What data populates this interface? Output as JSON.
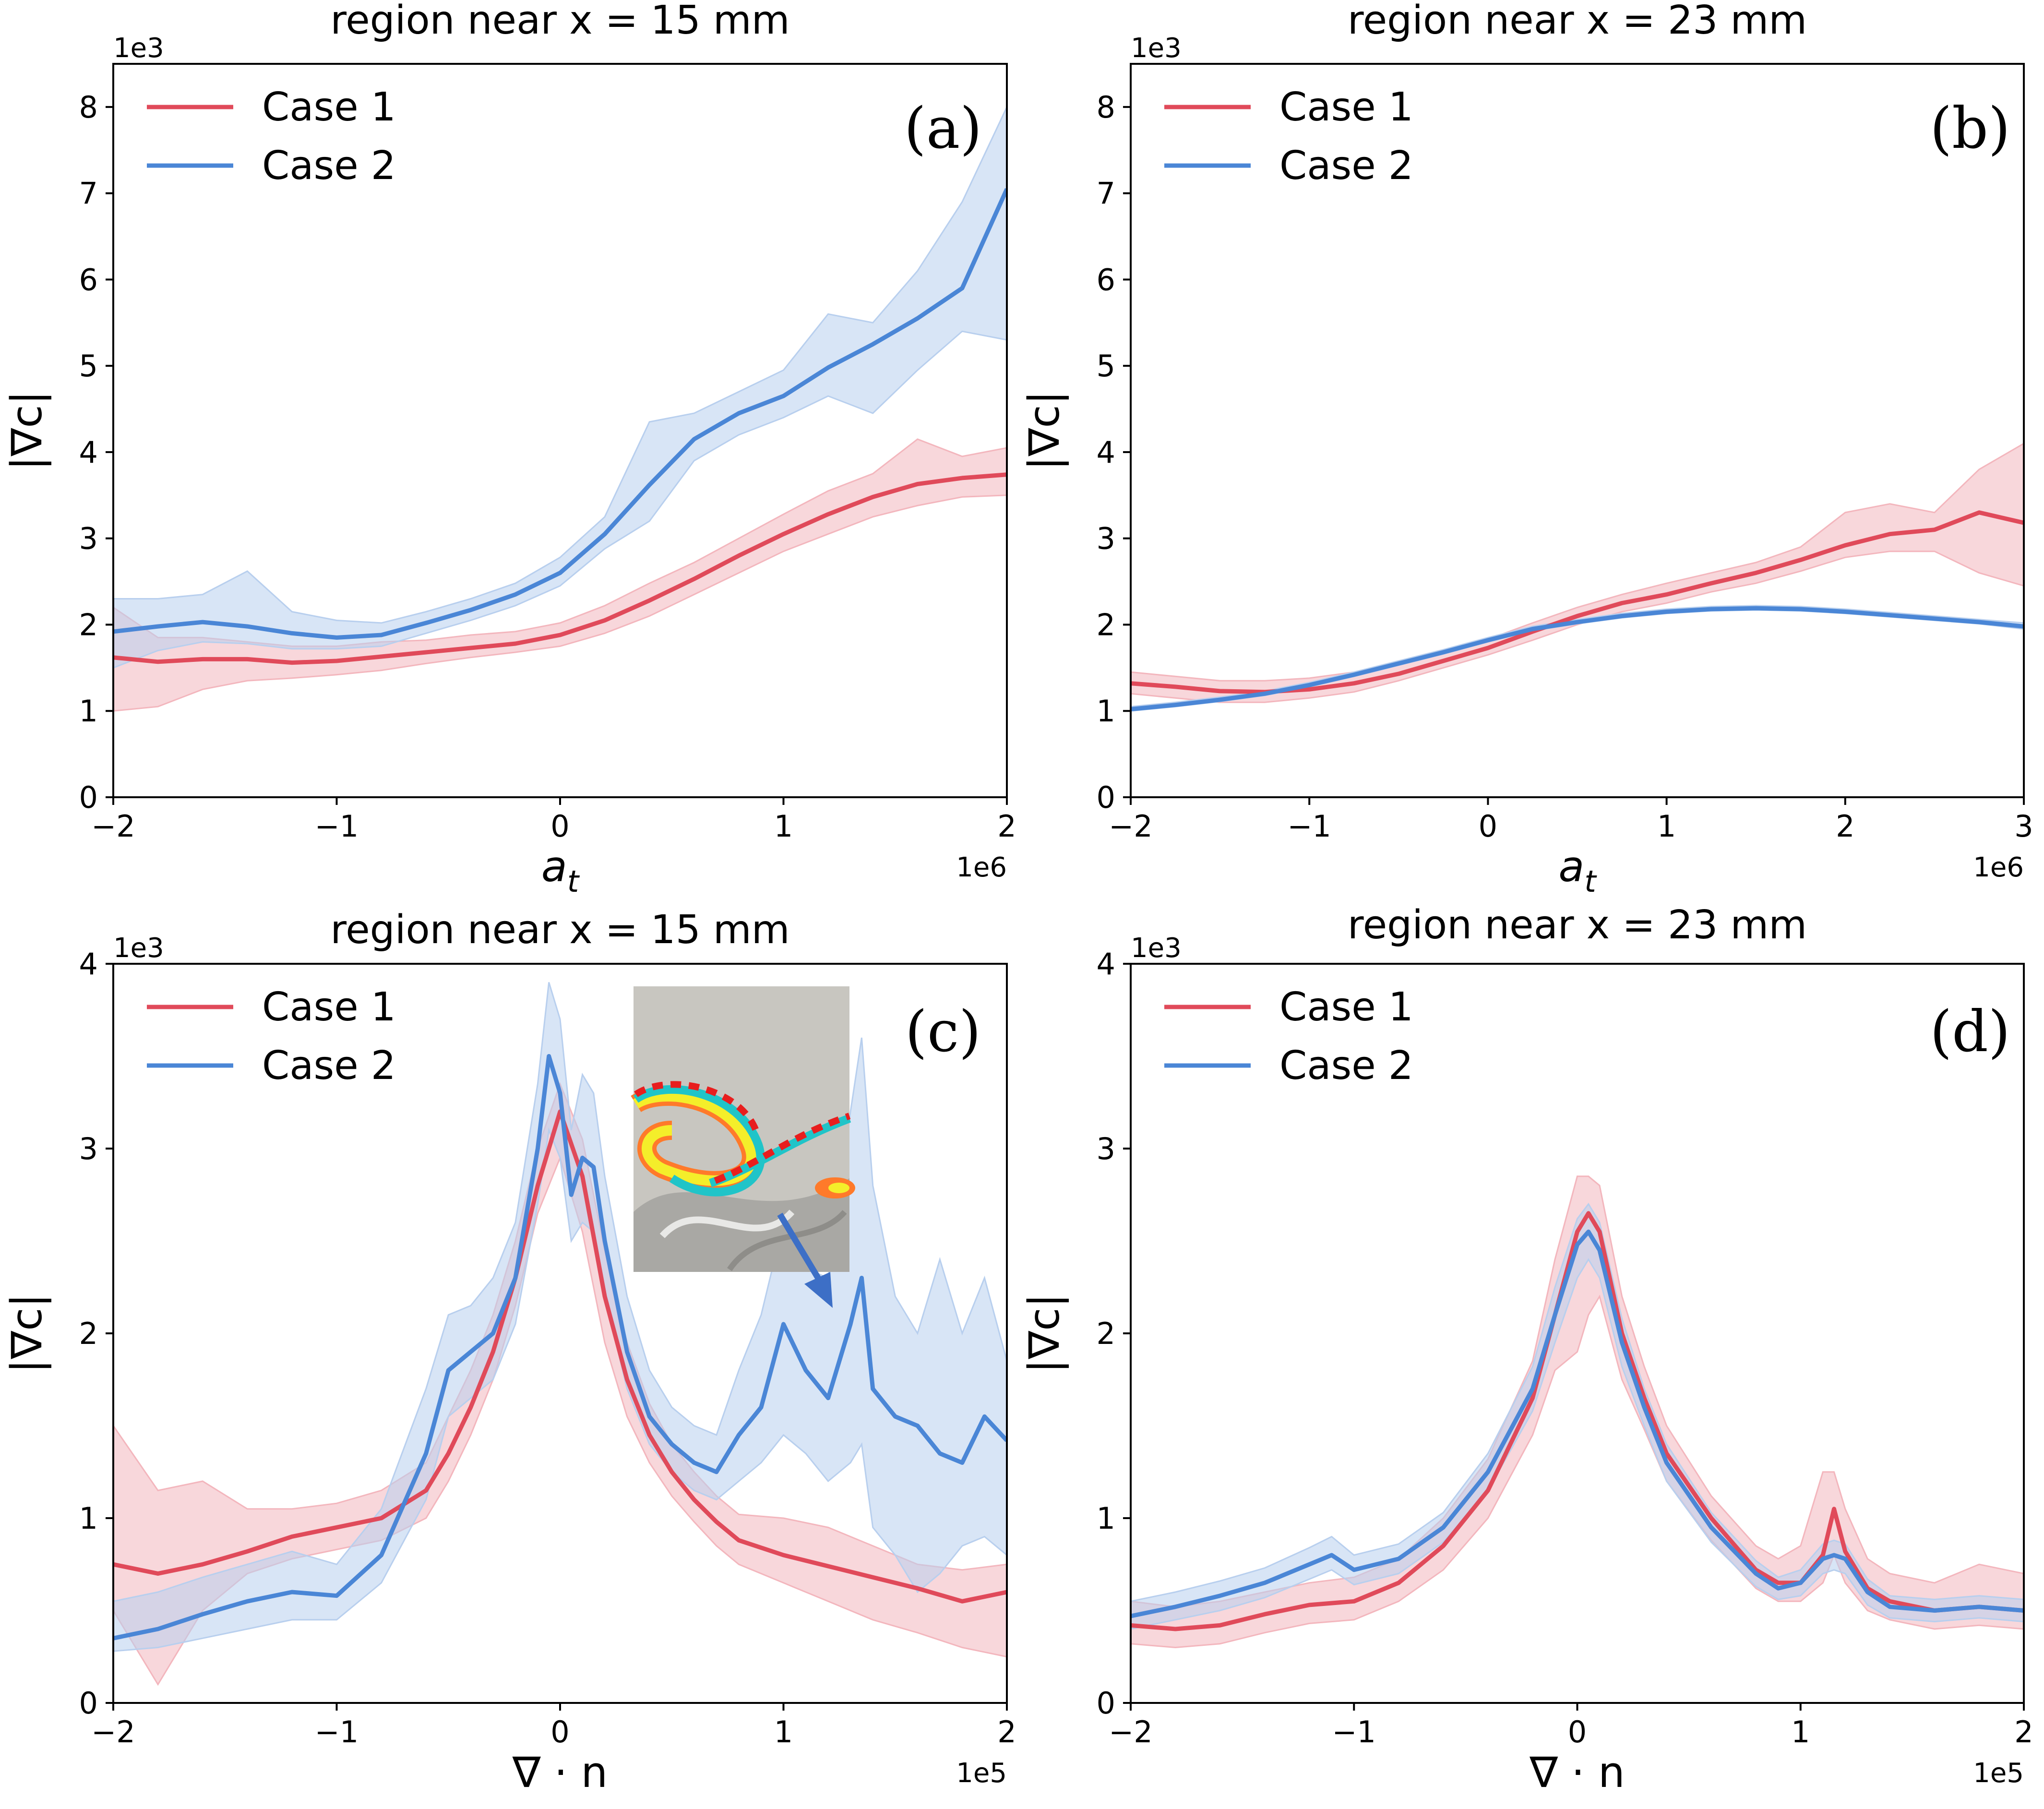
{
  "figure": {
    "colors": {
      "case1": "#e04a5a",
      "case2": "#4a86d6",
      "case1_band": "#f3b6bd",
      "case2_band": "#b8cfee"
    }
  },
  "chart_data": [
    {
      "id": "a",
      "type": "line",
      "tag": "(a)",
      "title": "region near x = 15 mm",
      "xlabel": "a_t",
      "ylabel": "|∇c|",
      "x_multiplier": "1e6",
      "y_multiplier": "1e3",
      "xlim": [
        -2,
        2
      ],
      "ylim": [
        0,
        8.5
      ],
      "xticks": [
        -2,
        -1,
        0,
        1,
        2
      ],
      "xtick_labels": [
        "−2",
        "−1",
        "0",
        "1",
        "2"
      ],
      "yticks": [
        0,
        1,
        2,
        3,
        4,
        5,
        6,
        7,
        8
      ],
      "ytick_labels": [
        "0",
        "1",
        "2",
        "3",
        "4",
        "5",
        "6",
        "7",
        "8"
      ],
      "legend": [
        "Case 1",
        "Case 2"
      ],
      "legend_position": "top-left",
      "series": [
        {
          "name": "Case 1",
          "x": [
            -2,
            -1.8,
            -1.6,
            -1.4,
            -1.2,
            -1,
            -0.8,
            -0.6,
            -0.4,
            -0.2,
            0,
            0.2,
            0.4,
            0.6,
            0.8,
            1,
            1.2,
            1.4,
            1.6,
            1.8,
            2
          ],
          "values": [
            1.62,
            1.57,
            1.6,
            1.6,
            1.56,
            1.58,
            1.63,
            1.68,
            1.73,
            1.78,
            1.88,
            2.05,
            2.28,
            2.53,
            2.8,
            3.05,
            3.28,
            3.48,
            3.63,
            3.7,
            3.74
          ],
          "lower": [
            1.0,
            1.05,
            1.25,
            1.35,
            1.38,
            1.42,
            1.47,
            1.55,
            1.62,
            1.68,
            1.75,
            1.9,
            2.1,
            2.35,
            2.6,
            2.85,
            3.05,
            3.25,
            3.38,
            3.48,
            3.5
          ],
          "upper": [
            2.2,
            1.85,
            1.85,
            1.8,
            1.75,
            1.75,
            1.8,
            1.82,
            1.88,
            1.92,
            2.02,
            2.22,
            2.48,
            2.72,
            3.0,
            3.28,
            3.55,
            3.75,
            4.15,
            3.95,
            4.05
          ]
        },
        {
          "name": "Case 2",
          "x": [
            -2,
            -1.8,
            -1.6,
            -1.4,
            -1.2,
            -1,
            -0.8,
            -0.6,
            -0.4,
            -0.2,
            0,
            0.2,
            0.4,
            0.6,
            0.8,
            1,
            1.2,
            1.4,
            1.6,
            1.8,
            2
          ],
          "values": [
            1.92,
            1.98,
            2.03,
            1.98,
            1.9,
            1.85,
            1.88,
            2.02,
            2.17,
            2.35,
            2.6,
            3.05,
            3.62,
            4.15,
            4.45,
            4.65,
            4.98,
            5.25,
            5.55,
            5.9,
            7.05
          ],
          "lower": [
            1.5,
            1.7,
            1.8,
            1.78,
            1.72,
            1.72,
            1.75,
            1.9,
            2.05,
            2.22,
            2.45,
            2.88,
            3.2,
            3.9,
            4.2,
            4.4,
            4.65,
            4.45,
            4.95,
            5.4,
            5.3
          ],
          "upper": [
            2.3,
            2.3,
            2.35,
            2.62,
            2.15,
            2.05,
            2.02,
            2.15,
            2.3,
            2.48,
            2.78,
            3.25,
            4.35,
            4.45,
            4.7,
            4.95,
            5.6,
            5.5,
            6.1,
            6.9,
            8.0
          ]
        }
      ]
    },
    {
      "id": "b",
      "type": "line",
      "tag": "(b)",
      "title": "region near x = 23 mm",
      "xlabel": "a_t",
      "ylabel": "|∇c|",
      "x_multiplier": "1e6",
      "y_multiplier": "1e3",
      "xlim": [
        -2,
        3
      ],
      "ylim": [
        0,
        8.5
      ],
      "xticks": [
        -2,
        -1,
        0,
        1,
        2,
        3
      ],
      "xtick_labels": [
        "−2",
        "−1",
        "0",
        "1",
        "2",
        "3"
      ],
      "yticks": [
        0,
        1,
        2,
        3,
        4,
        5,
        6,
        7,
        8
      ],
      "ytick_labels": [
        "0",
        "1",
        "2",
        "3",
        "4",
        "5",
        "6",
        "7",
        "8"
      ],
      "legend": [
        "Case 1",
        "Case 2"
      ],
      "legend_position": "top-left",
      "series": [
        {
          "name": "Case 1",
          "x": [
            -2,
            -1.75,
            -1.5,
            -1.25,
            -1,
            -0.75,
            -0.5,
            -0.25,
            0,
            0.25,
            0.5,
            0.75,
            1,
            1.25,
            1.5,
            1.75,
            2,
            2.25,
            2.5,
            2.75,
            3
          ],
          "values": [
            1.32,
            1.28,
            1.23,
            1.22,
            1.25,
            1.32,
            1.43,
            1.58,
            1.73,
            1.92,
            2.1,
            2.25,
            2.35,
            2.48,
            2.6,
            2.75,
            2.92,
            3.05,
            3.1,
            3.3,
            3.18
          ],
          "lower": [
            1.2,
            1.15,
            1.1,
            1.1,
            1.15,
            1.22,
            1.35,
            1.5,
            1.65,
            1.82,
            2.0,
            2.15,
            2.25,
            2.38,
            2.48,
            2.62,
            2.78,
            2.85,
            2.85,
            2.6,
            2.45
          ],
          "upper": [
            1.45,
            1.4,
            1.35,
            1.35,
            1.38,
            1.45,
            1.55,
            1.68,
            1.83,
            2.02,
            2.2,
            2.35,
            2.48,
            2.6,
            2.72,
            2.9,
            3.3,
            3.4,
            3.3,
            3.8,
            4.1
          ]
        },
        {
          "name": "Case 2",
          "x": [
            -2,
            -1.75,
            -1.5,
            -1.25,
            -1,
            -0.75,
            -0.5,
            -0.25,
            0,
            0.25,
            0.5,
            0.75,
            1,
            1.25,
            1.5,
            1.75,
            2,
            2.25,
            2.5,
            2.75,
            3
          ],
          "values": [
            1.02,
            1.07,
            1.13,
            1.2,
            1.3,
            1.42,
            1.55,
            1.68,
            1.82,
            1.95,
            2.03,
            2.1,
            2.15,
            2.18,
            2.19,
            2.18,
            2.15,
            2.11,
            2.07,
            2.03,
            1.98
          ],
          "lower": [
            1.0,
            1.05,
            1.11,
            1.18,
            1.28,
            1.4,
            1.53,
            1.66,
            1.8,
            1.93,
            2.01,
            2.08,
            2.13,
            2.16,
            2.17,
            2.16,
            2.13,
            2.09,
            2.05,
            2.01,
            1.95
          ],
          "upper": [
            1.05,
            1.1,
            1.16,
            1.23,
            1.33,
            1.45,
            1.58,
            1.71,
            1.85,
            1.98,
            2.06,
            2.13,
            2.18,
            2.21,
            2.22,
            2.21,
            2.18,
            2.14,
            2.1,
            2.06,
            2.02
          ]
        }
      ]
    },
    {
      "id": "c",
      "type": "line",
      "tag": "(c)",
      "title": "region near x = 15 mm",
      "xlabel": "∇ · n",
      "ylabel": "|∇c|",
      "x_multiplier": "1e5",
      "y_multiplier": "1e3",
      "xlim": [
        -2,
        2
      ],
      "ylim": [
        0,
        4
      ],
      "xticks": [
        -2,
        -1,
        0,
        1,
        2
      ],
      "xtick_labels": [
        "−2",
        "−1",
        "0",
        "1",
        "2"
      ],
      "yticks": [
        0,
        1,
        2,
        3,
        4
      ],
      "ytick_labels": [
        "0",
        "1",
        "2",
        "3",
        "4"
      ],
      "legend": [
        "Case 1",
        "Case 2"
      ],
      "legend_position": "top-left",
      "inset": "zoomed flame-front snapshot with arrow pointing to the Case 2 bump near 1.2e5",
      "series": [
        {
          "name": "Case 1",
          "x": [
            -2,
            -1.8,
            -1.6,
            -1.4,
            -1.2,
            -1,
            -0.8,
            -0.6,
            -0.5,
            -0.4,
            -0.3,
            -0.2,
            -0.1,
            0,
            0.1,
            0.2,
            0.3,
            0.4,
            0.5,
            0.6,
            0.7,
            0.8,
            1,
            1.2,
            1.4,
            1.6,
            1.8,
            2
          ],
          "values": [
            0.75,
            0.7,
            0.75,
            0.82,
            0.9,
            0.95,
            1.0,
            1.15,
            1.35,
            1.6,
            1.9,
            2.3,
            2.8,
            3.2,
            2.85,
            2.2,
            1.75,
            1.45,
            1.25,
            1.1,
            0.98,
            0.88,
            0.8,
            0.74,
            0.68,
            0.62,
            0.55,
            0.6
          ],
          "lower": [
            0.5,
            0.1,
            0.5,
            0.7,
            0.78,
            0.83,
            0.88,
            1.0,
            1.2,
            1.45,
            1.75,
            2.15,
            2.65,
            2.95,
            2.55,
            1.95,
            1.55,
            1.3,
            1.12,
            0.98,
            0.85,
            0.75,
            0.65,
            0.55,
            0.45,
            0.38,
            0.3,
            0.25
          ],
          "upper": [
            1.5,
            1.15,
            1.2,
            1.05,
            1.05,
            1.08,
            1.15,
            1.3,
            1.55,
            1.8,
            2.1,
            2.5,
            3.0,
            3.35,
            3.05,
            2.45,
            1.95,
            1.62,
            1.4,
            1.25,
            1.12,
            1.02,
            1.0,
            0.95,
            0.85,
            0.75,
            0.72,
            0.75
          ]
        },
        {
          "name": "Case 2",
          "x": [
            -2,
            -1.8,
            -1.6,
            -1.4,
            -1.2,
            -1,
            -0.8,
            -0.6,
            -0.5,
            -0.4,
            -0.3,
            -0.2,
            -0.1,
            -0.05,
            0,
            0.05,
            0.1,
            0.15,
            0.2,
            0.3,
            0.4,
            0.5,
            0.6,
            0.7,
            0.8,
            0.9,
            1,
            1.1,
            1.2,
            1.3,
            1.35,
            1.4,
            1.5,
            1.6,
            1.7,
            1.8,
            1.9,
            2
          ],
          "values": [
            0.35,
            0.4,
            0.48,
            0.55,
            0.6,
            0.58,
            0.8,
            1.35,
            1.8,
            1.9,
            2.0,
            2.3,
            3.0,
            3.5,
            3.3,
            2.75,
            2.95,
            2.9,
            2.5,
            1.9,
            1.55,
            1.4,
            1.3,
            1.25,
            1.45,
            1.6,
            2.05,
            1.8,
            1.65,
            2.05,
            2.3,
            1.7,
            1.55,
            1.5,
            1.35,
            1.3,
            1.55,
            1.42
          ],
          "lower": [
            0.28,
            0.3,
            0.35,
            0.4,
            0.45,
            0.45,
            0.65,
            1.1,
            1.55,
            1.65,
            1.75,
            2.05,
            2.7,
            3.1,
            2.95,
            2.5,
            2.6,
            2.55,
            2.2,
            1.7,
            1.4,
            1.25,
            1.15,
            1.1,
            1.2,
            1.3,
            1.45,
            1.35,
            1.2,
            1.3,
            1.4,
            0.95,
            0.8,
            0.6,
            0.7,
            0.85,
            0.9,
            0.8
          ],
          "upper": [
            0.55,
            0.6,
            0.68,
            0.75,
            0.82,
            0.75,
            1.05,
            1.7,
            2.1,
            2.15,
            2.3,
            2.6,
            3.35,
            3.9,
            3.7,
            3.1,
            3.4,
            3.3,
            2.85,
            2.2,
            1.8,
            1.6,
            1.5,
            1.45,
            1.8,
            2.1,
            2.6,
            2.35,
            2.3,
            3.2,
            3.6,
            2.8,
            2.2,
            2.0,
            2.4,
            2.0,
            2.3,
            1.85
          ]
        }
      ]
    },
    {
      "id": "d",
      "type": "line",
      "tag": "(d)",
      "title": "region near x = 23 mm",
      "xlabel": "∇ · n",
      "ylabel": "|∇c|",
      "x_multiplier": "1e5",
      "y_multiplier": "1e3",
      "xlim": [
        -2,
        2
      ],
      "ylim": [
        0,
        4
      ],
      "xticks": [
        -2,
        -1,
        0,
        1,
        2
      ],
      "xtick_labels": [
        "−2",
        "−1",
        "0",
        "1",
        "2"
      ],
      "yticks": [
        0,
        1,
        2,
        3,
        4
      ],
      "ytick_labels": [
        "0",
        "1",
        "2",
        "3",
        "4"
      ],
      "legend": [
        "Case 1",
        "Case 2"
      ],
      "legend_position": "top-left",
      "series": [
        {
          "name": "Case 1",
          "x": [
            -2,
            -1.8,
            -1.6,
            -1.4,
            -1.2,
            -1,
            -0.8,
            -0.6,
            -0.4,
            -0.2,
            -0.1,
            0,
            0.05,
            0.1,
            0.2,
            0.3,
            0.4,
            0.6,
            0.8,
            0.9,
            1,
            1.1,
            1.15,
            1.2,
            1.3,
            1.4,
            1.6,
            1.8,
            2
          ],
          "values": [
            0.42,
            0.4,
            0.42,
            0.48,
            0.53,
            0.55,
            0.65,
            0.85,
            1.15,
            1.65,
            2.1,
            2.55,
            2.65,
            2.55,
            2.0,
            1.65,
            1.35,
            1.0,
            0.72,
            0.65,
            0.65,
            0.8,
            1.05,
            0.82,
            0.62,
            0.55,
            0.5,
            0.52,
            0.5
          ],
          "lower": [
            0.32,
            0.3,
            0.32,
            0.38,
            0.43,
            0.45,
            0.55,
            0.72,
            1.0,
            1.45,
            1.8,
            1.9,
            2.1,
            2.2,
            1.75,
            1.48,
            1.2,
            0.88,
            0.62,
            0.55,
            0.55,
            0.65,
            0.8,
            0.65,
            0.5,
            0.45,
            0.4,
            0.42,
            0.4
          ],
          "upper": [
            0.55,
            0.52,
            0.55,
            0.6,
            0.65,
            0.68,
            0.78,
            1.0,
            1.32,
            1.85,
            2.4,
            2.85,
            2.85,
            2.8,
            2.2,
            1.82,
            1.5,
            1.12,
            0.85,
            0.78,
            0.85,
            1.25,
            1.25,
            1.05,
            0.78,
            0.7,
            0.65,
            0.75,
            0.7
          ]
        },
        {
          "name": "Case 2",
          "x": [
            -2,
            -1.8,
            -1.6,
            -1.4,
            -1.2,
            -1.1,
            -1,
            -0.8,
            -0.6,
            -0.4,
            -0.2,
            -0.1,
            0,
            0.05,
            0.1,
            0.2,
            0.3,
            0.4,
            0.6,
            0.8,
            0.9,
            1,
            1.1,
            1.15,
            1.2,
            1.3,
            1.4,
            1.6,
            1.8,
            2
          ],
          "values": [
            0.47,
            0.52,
            0.58,
            0.65,
            0.75,
            0.8,
            0.72,
            0.78,
            0.95,
            1.25,
            1.7,
            2.1,
            2.48,
            2.55,
            2.45,
            1.95,
            1.6,
            1.3,
            0.95,
            0.7,
            0.62,
            0.65,
            0.78,
            0.8,
            0.78,
            0.6,
            0.52,
            0.5,
            0.52,
            0.5
          ],
          "lower": [
            0.4,
            0.45,
            0.5,
            0.57,
            0.67,
            0.72,
            0.64,
            0.7,
            0.87,
            1.15,
            1.58,
            1.95,
            2.3,
            2.4,
            2.3,
            1.82,
            1.5,
            1.2,
            0.87,
            0.63,
            0.56,
            0.58,
            0.7,
            0.72,
            0.7,
            0.53,
            0.46,
            0.44,
            0.46,
            0.44
          ],
          "upper": [
            0.55,
            0.6,
            0.66,
            0.73,
            0.84,
            0.9,
            0.8,
            0.86,
            1.03,
            1.35,
            1.82,
            2.25,
            2.62,
            2.7,
            2.6,
            2.08,
            1.7,
            1.4,
            1.03,
            0.77,
            0.68,
            0.72,
            0.86,
            0.88,
            0.86,
            0.67,
            0.58,
            0.56,
            0.58,
            0.56
          ]
        }
      ]
    }
  ]
}
